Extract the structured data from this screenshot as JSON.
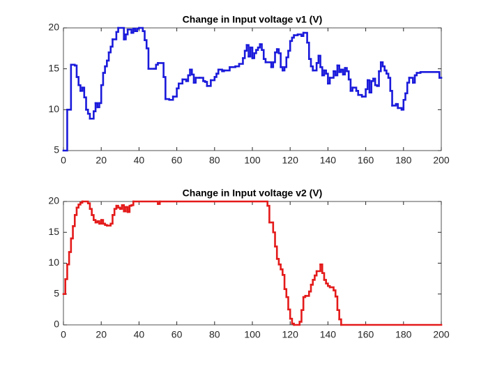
{
  "chart_data": [
    {
      "type": "line",
      "title": "Change in Input voltage v1 (V)",
      "drawstyle": "steps-post",
      "xlim": [
        0,
        200
      ],
      "ylim": [
        5,
        20
      ],
      "xticks": [
        0,
        20,
        40,
        60,
        80,
        100,
        120,
        140,
        160,
        180,
        200
      ],
      "yticks": [
        5,
        10,
        15,
        20
      ],
      "series": [
        {
          "color": "#1a1adb",
          "x": [
            0,
            2,
            4,
            6,
            7,
            8,
            9,
            10,
            11,
            12,
            13,
            14,
            16,
            17,
            18,
            19,
            20,
            21,
            22,
            23,
            24,
            25,
            26,
            28,
            29,
            32,
            33,
            34,
            36,
            37,
            38,
            39,
            40,
            42,
            43,
            44,
            45,
            48,
            49,
            50,
            53,
            54,
            56,
            58,
            60,
            61,
            63,
            65,
            66,
            67,
            68,
            69,
            70,
            72,
            74,
            75,
            76,
            78,
            80,
            81,
            82,
            84,
            85,
            88,
            91,
            93,
            95,
            96,
            97,
            98,
            99,
            100,
            101,
            102,
            103,
            104,
            105,
            106,
            107,
            110,
            111,
            112,
            113,
            114,
            115,
            116,
            117,
            118,
            119,
            120,
            121,
            122,
            124,
            126,
            127,
            129,
            130,
            131,
            132,
            134,
            135,
            136,
            137,
            138,
            139,
            140,
            141,
            143,
            144,
            145,
            146,
            147,
            148,
            149,
            150,
            151,
            152,
            153,
            155,
            156,
            158,
            160,
            161,
            162,
            163,
            164,
            165,
            166,
            167,
            168,
            169,
            170,
            171,
            172,
            173,
            174,
            176,
            177,
            179,
            180,
            181,
            182,
            183,
            185,
            186,
            187,
            189,
            199,
            200
          ],
          "values": [
            5,
            10,
            15.5,
            15.4,
            14,
            13,
            12.3,
            12.7,
            11.5,
            10,
            9.5,
            8.9,
            9.8,
            10.8,
            10.3,
            10.8,
            13,
            14.5,
            15.3,
            16,
            17,
            17.7,
            18.6,
            19.5,
            20,
            18.6,
            19.2,
            19.8,
            19.4,
            19.9,
            19.6,
            19.9,
            20,
            19.6,
            18.5,
            17.5,
            15,
            15,
            15.5,
            15.7,
            14,
            11.3,
            11.2,
            11.6,
            12.6,
            13.2,
            13.7,
            13.5,
            14.2,
            14.9,
            14.3,
            13.3,
            13.9,
            13.9,
            13.5,
            13.4,
            12.9,
            13.6,
            14,
            14.4,
            14.9,
            14.7,
            14.8,
            15.2,
            15.3,
            15.6,
            16.3,
            17.2,
            17.9,
            16.5,
            17.6,
            16.3,
            16.9,
            17.3,
            17.6,
            18,
            17.3,
            16.2,
            15.8,
            15.2,
            15.8,
            17,
            17.4,
            16.9,
            15.2,
            14.8,
            15.2,
            16.4,
            17.2,
            18.4,
            18.8,
            19.1,
            19.2,
            19,
            19.4,
            18.2,
            16.2,
            15.3,
            14.8,
            15.7,
            16.6,
            15.2,
            14.2,
            14.8,
            14.4,
            13.2,
            13.9,
            14.7,
            14.2,
            15.4,
            14.6,
            14.9,
            14.3,
            15.1,
            14.7,
            13.7,
            12.3,
            12.7,
            12.3,
            11.8,
            11.6,
            12.5,
            13.6,
            12.1,
            13.5,
            13.8,
            13,
            12.9,
            14.7,
            15.8,
            15.3,
            14.8,
            14.4,
            13.9,
            12.3,
            10.5,
            10.7,
            10.2,
            10,
            11.2,
            12,
            13.3,
            13.9,
            13.3,
            14.2,
            14.5,
            14.6,
            13.9,
            13.9
          ]
        }
      ]
    },
    {
      "type": "line",
      "title": "Change in Input voltage v2 (V)",
      "drawstyle": "steps-post",
      "xlim": [
        0,
        200
      ],
      "ylim": [
        0,
        20
      ],
      "xticks": [
        0,
        20,
        40,
        60,
        80,
        100,
        120,
        140,
        160,
        180,
        200
      ],
      "yticks": [
        0,
        5,
        10,
        15,
        20
      ],
      "series": [
        {
          "color": "#e41a1a",
          "x": [
            0,
            1,
            2,
            3,
            4,
            5,
            6,
            7,
            8,
            9,
            10,
            13,
            14,
            15,
            16,
            17,
            18,
            19,
            20,
            21,
            22,
            23,
            25,
            26,
            27,
            28,
            29,
            30,
            31,
            32,
            33,
            34,
            35,
            36,
            37,
            50,
            51,
            108,
            109,
            111,
            112,
            113,
            114,
            115,
            116,
            117,
            118,
            119,
            120,
            121,
            122,
            125,
            126,
            127,
            128,
            130,
            131,
            132,
            133,
            134,
            136,
            137,
            138,
            139,
            140,
            141,
            143,
            144,
            145,
            146,
            147,
            200
          ],
          "values": [
            5,
            7.4,
            9.8,
            11.8,
            14,
            16,
            17.8,
            19,
            19.5,
            19.8,
            20,
            19.7,
            18.8,
            17.8,
            17,
            16.6,
            16.8,
            16.4,
            17,
            16.4,
            16.2,
            16.1,
            16.4,
            17.8,
            18.8,
            19.3,
            19,
            18.8,
            19.4,
            18.4,
            19.1,
            18.3,
            19.3,
            19.4,
            20,
            19.6,
            20,
            19.3,
            16.6,
            15,
            12.7,
            10.7,
            9.8,
            9,
            8.1,
            5.8,
            4.5,
            2.5,
            1,
            0.2,
            0,
            0.5,
            2.4,
            4.5,
            4.7,
            5.4,
            6.5,
            7.3,
            8,
            8.7,
            9.8,
            8.4,
            7.3,
            6.7,
            6.3,
            6.1,
            5.6,
            4.6,
            2.4,
            0.9,
            0,
            0
          ]
        }
      ]
    }
  ]
}
